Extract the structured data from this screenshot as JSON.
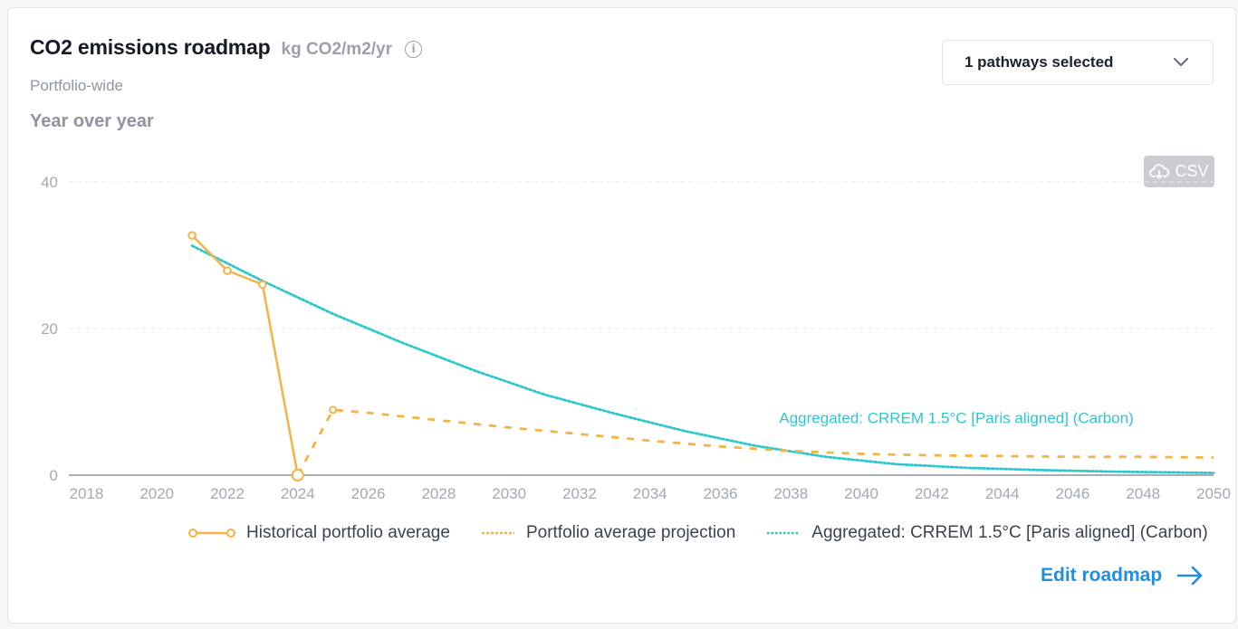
{
  "card": {
    "title": "CO2 emissions roadmap",
    "unit": "kg CO2/m2/yr",
    "subtitle": "Portfolio-wide",
    "period": "Year over year",
    "info_icon": "info-icon"
  },
  "dropdown": {
    "label": "1 pathways selected",
    "icon": "chevron-down-icon"
  },
  "csv_button": {
    "label": "CSV",
    "icon": "cloud-download-icon"
  },
  "edit_link": {
    "label": "Edit roadmap",
    "icon": "arrow-right-icon"
  },
  "colors": {
    "historical": "#f5b345",
    "projection": "#f5b345",
    "pathway": "#2ec7cc",
    "grid": "#e6e8ec",
    "axis": "#8e939b",
    "link": "#1f8fe0"
  },
  "chart_data": {
    "type": "line",
    "ylim": [
      0,
      40
    ],
    "xlim": [
      2017.5,
      2050
    ],
    "yticks": [
      "0",
      "20",
      "40"
    ],
    "xticks": [
      "2018",
      "2020",
      "2022",
      "2024",
      "2026",
      "2028",
      "2030",
      "2032",
      "2034",
      "2036",
      "2038",
      "2040",
      "2042",
      "2044",
      "2046",
      "2048",
      "2050"
    ],
    "grid": true,
    "legend_position": "bottom",
    "series": [
      {
        "name": "Historical portfolio average",
        "style": "solid-markers",
        "points": [
          [
            2021,
            32.7
          ],
          [
            2022,
            27.9
          ],
          [
            2023,
            26.0
          ],
          [
            2024,
            0.0
          ]
        ]
      },
      {
        "name": "Portfolio average projection",
        "style": "dashed",
        "points": [
          [
            2024,
            0.0
          ],
          [
            2025,
            8.9
          ],
          [
            2026,
            8.5
          ],
          [
            2028,
            7.5
          ],
          [
            2030,
            6.5
          ],
          [
            2032,
            5.6
          ],
          [
            2034,
            4.7
          ],
          [
            2036,
            3.9
          ],
          [
            2038,
            3.3
          ],
          [
            2040,
            2.9
          ],
          [
            2042,
            2.7
          ],
          [
            2044,
            2.6
          ],
          [
            2046,
            2.5
          ],
          [
            2048,
            2.5
          ],
          [
            2050,
            2.4
          ]
        ]
      },
      {
        "name": "Aggregated: CRREM 1.5°C [Paris aligned] (Carbon)",
        "style": "dotted",
        "points": [
          [
            2021,
            31.3
          ],
          [
            2023,
            26.5
          ],
          [
            2025,
            22.0
          ],
          [
            2027,
            18.0
          ],
          [
            2029,
            14.3
          ],
          [
            2031,
            11.0
          ],
          [
            2033,
            8.4
          ],
          [
            2035,
            6.0
          ],
          [
            2037,
            4.0
          ],
          [
            2039,
            2.5
          ],
          [
            2041,
            1.5
          ],
          [
            2043,
            1.0
          ],
          [
            2045,
            0.7
          ],
          [
            2047,
            0.5
          ],
          [
            2050,
            0.3
          ]
        ]
      }
    ],
    "annotations": [
      {
        "text": "Aggregated: CRREM 1.5°C [Paris aligned] (Carbon)",
        "x": 2042.7,
        "y": 7.1
      }
    ]
  }
}
